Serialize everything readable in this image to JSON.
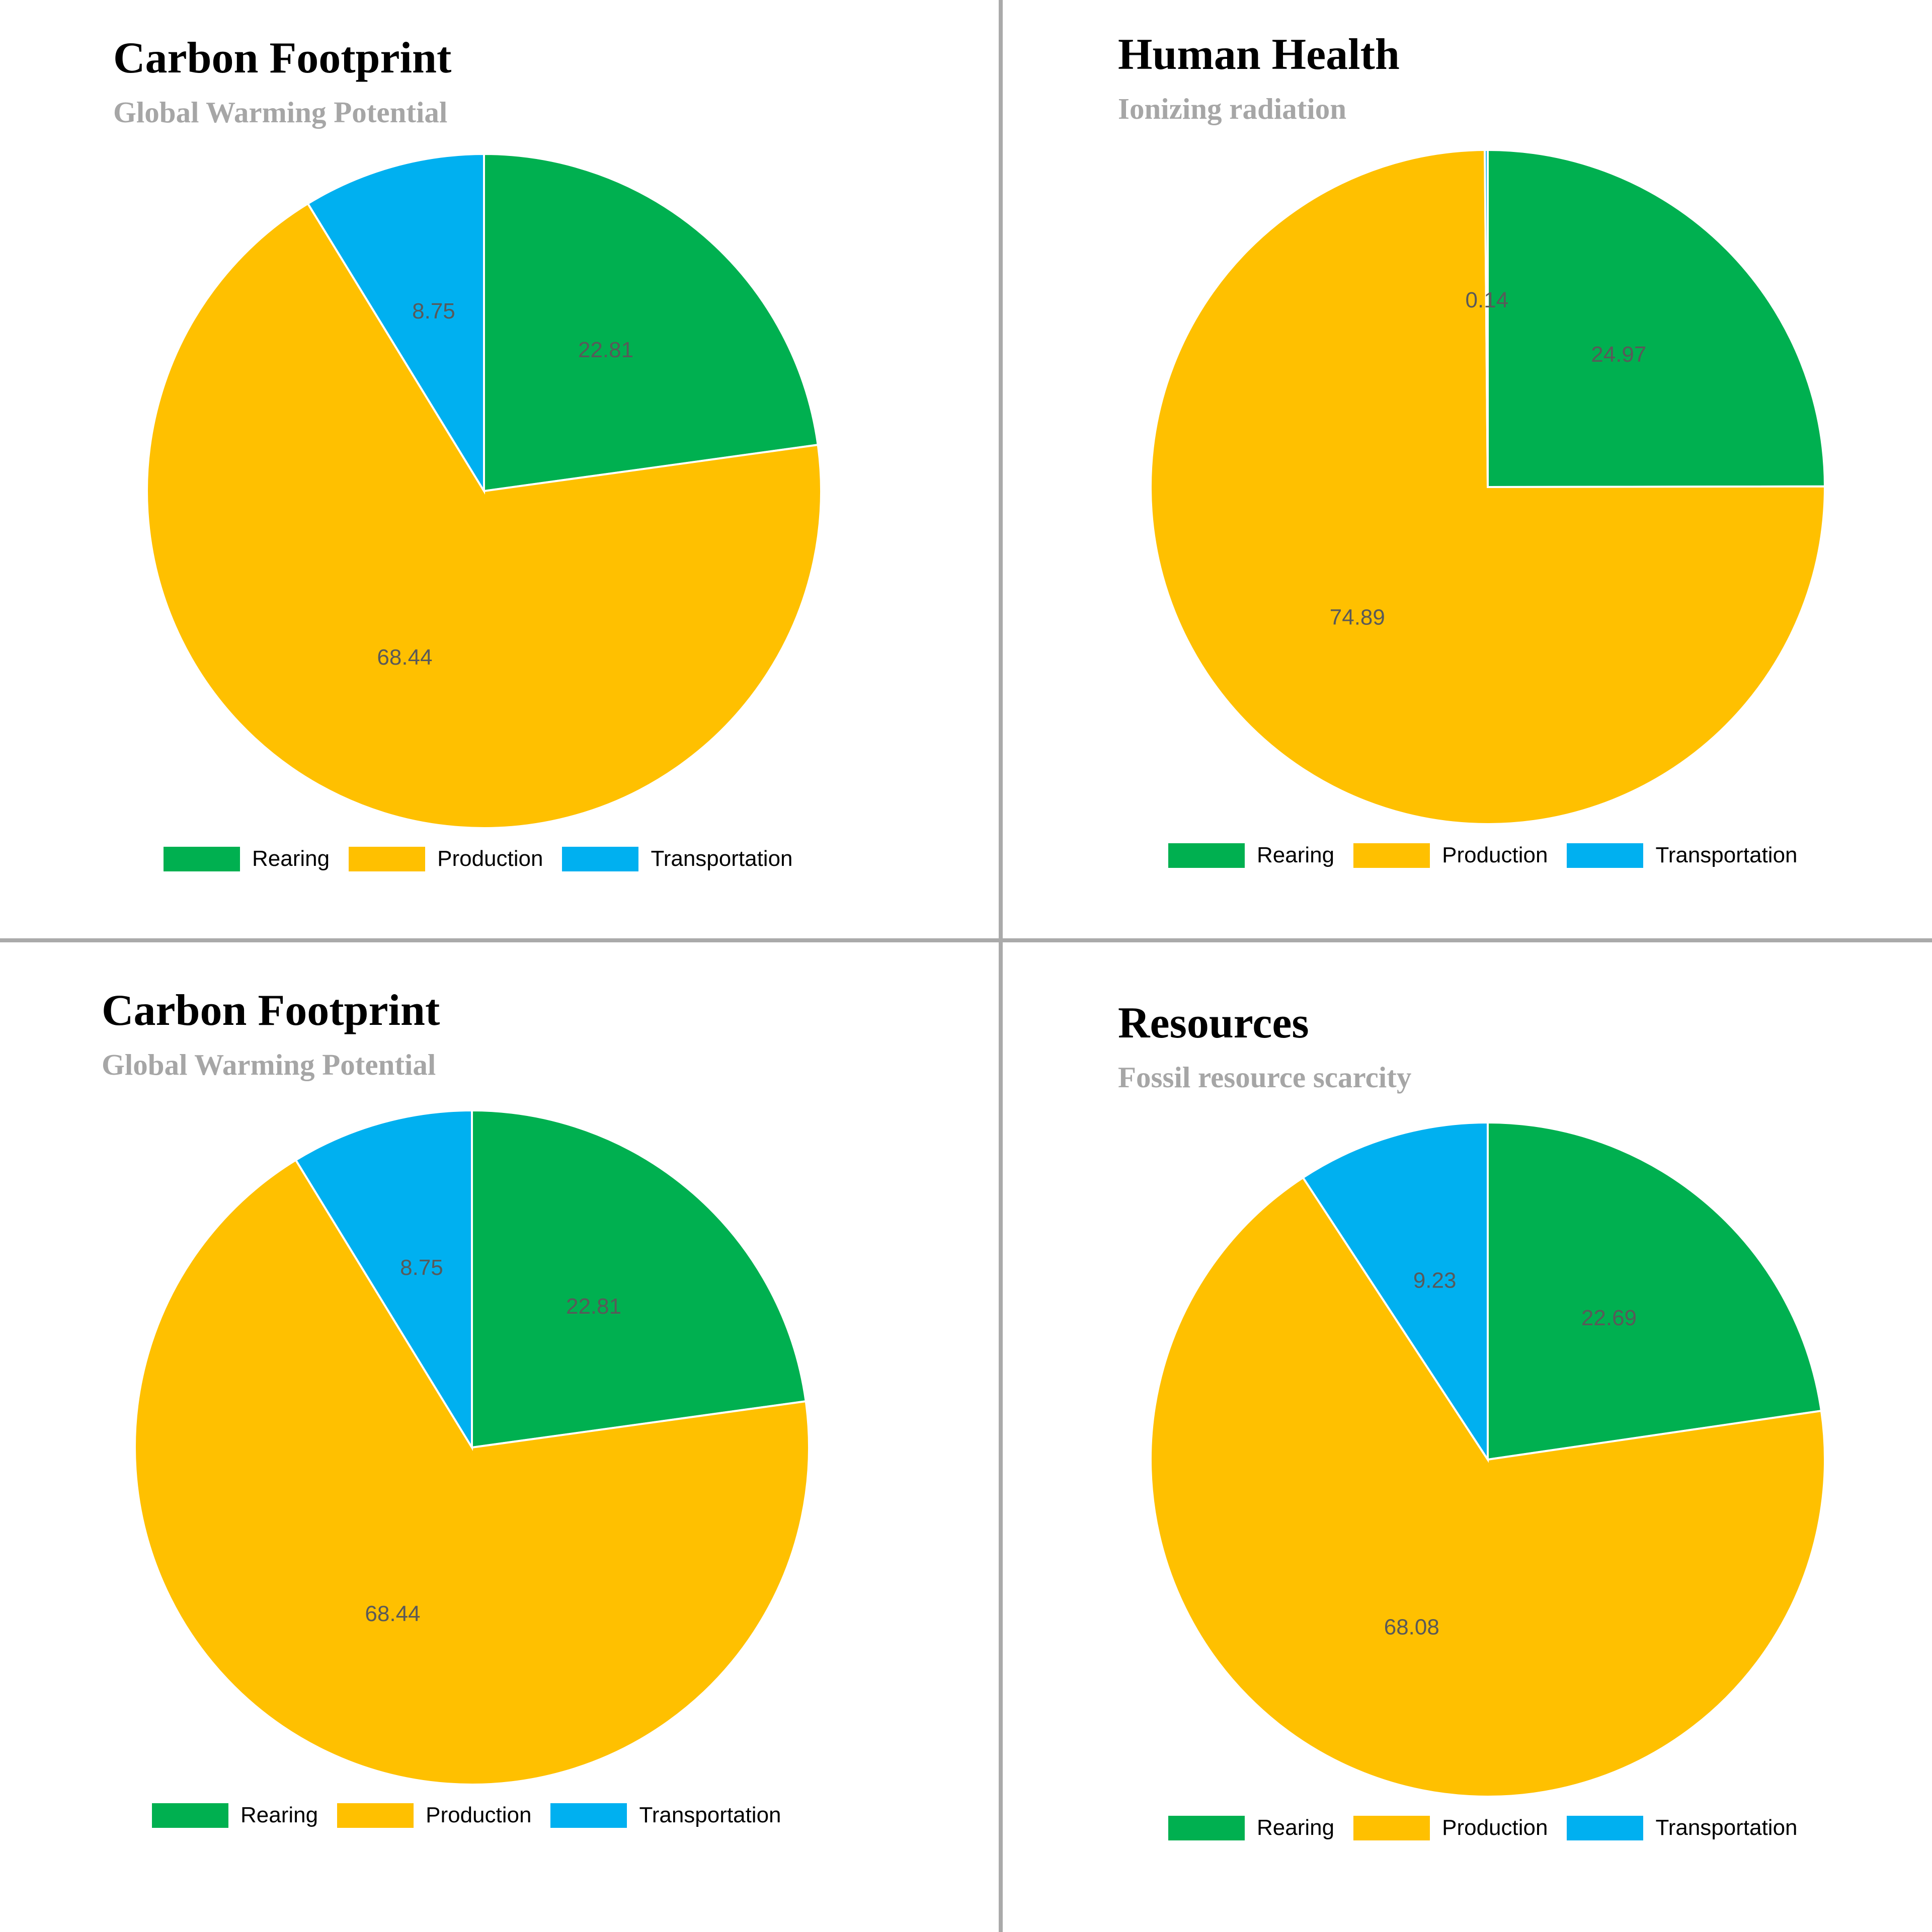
{
  "colors": {
    "Rearing": "#00b050",
    "Production": "#ffc000",
    "Transportation": "#00b0f0"
  },
  "chart_data": [
    {
      "type": "pie",
      "title": "Carbon Footprint",
      "subtitle": "Global Warming Potential",
      "categories": [
        "Rearing",
        "Production",
        "Transportation"
      ],
      "values": [
        22.81,
        68.44,
        8.75
      ],
      "labels": [
        "22.81",
        "68.44",
        "8.75"
      ],
      "legend": "bottom"
    },
    {
      "type": "pie",
      "title": "Human Health",
      "subtitle": "Ionizing radiation",
      "categories": [
        "Rearing",
        "Production",
        "Transportation"
      ],
      "values": [
        24.97,
        74.89,
        0.14
      ],
      "labels": [
        "24.97",
        "74.89",
        "0.14"
      ],
      "legend": "bottom"
    },
    {
      "type": "pie",
      "title": "Carbon Footprint",
      "subtitle": "Global Warming Potential",
      "categories": [
        "Rearing",
        "Production",
        "Transportation"
      ],
      "values": [
        22.81,
        68.44,
        8.75
      ],
      "labels": [
        "22.81",
        "68.44",
        "8.75"
      ],
      "legend": "bottom"
    },
    {
      "type": "pie",
      "title": "Resources",
      "subtitle": "Fossil resource scarcity",
      "categories": [
        "Rearing",
        "Production",
        "Transportation"
      ],
      "values": [
        22.69,
        68.08,
        9.23
      ],
      "labels": [
        "22.69",
        "68.08",
        "9.23"
      ],
      "legend": "bottom"
    }
  ]
}
